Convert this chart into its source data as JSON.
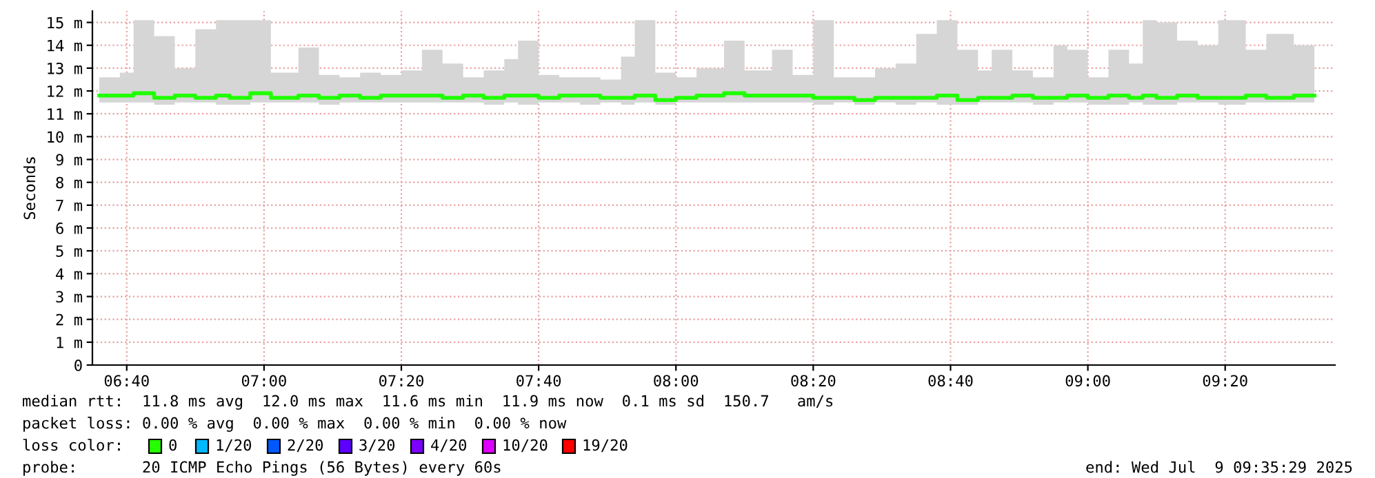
{
  "chart_data": {
    "type": "step",
    "ylabel": "Seconds",
    "x": [
      "2025-07-09T06:36",
      "2025-07-09T06:39",
      "2025-07-09T06:41",
      "2025-07-09T06:44",
      "2025-07-09T06:47",
      "2025-07-09T06:50",
      "2025-07-09T06:53",
      "2025-07-09T06:55",
      "2025-07-09T06:58",
      "2025-07-09T07:01",
      "2025-07-09T07:05",
      "2025-07-09T07:08",
      "2025-07-09T07:11",
      "2025-07-09T07:14",
      "2025-07-09T07:17",
      "2025-07-09T07:20",
      "2025-07-09T07:23",
      "2025-07-09T07:26",
      "2025-07-09T07:29",
      "2025-07-09T07:32",
      "2025-07-09T07:35",
      "2025-07-09T07:37",
      "2025-07-09T07:40",
      "2025-07-09T07:43",
      "2025-07-09T07:46",
      "2025-07-09T07:49",
      "2025-07-09T07:52",
      "2025-07-09T07:54",
      "2025-07-09T07:57",
      "2025-07-09T08:00",
      "2025-07-09T08:03",
      "2025-07-09T08:07",
      "2025-07-09T08:10",
      "2025-07-09T08:14",
      "2025-07-09T08:17",
      "2025-07-09T08:20",
      "2025-07-09T08:23",
      "2025-07-09T08:26",
      "2025-07-09T08:29",
      "2025-07-09T08:32",
      "2025-07-09T08:35",
      "2025-07-09T08:38",
      "2025-07-09T08:41",
      "2025-07-09T08:44",
      "2025-07-09T08:46",
      "2025-07-09T08:49",
      "2025-07-09T08:52",
      "2025-07-09T08:55",
      "2025-07-09T08:57",
      "2025-07-09T09:00",
      "2025-07-09T09:03",
      "2025-07-09T09:06",
      "2025-07-09T09:08",
      "2025-07-09T09:10",
      "2025-07-09T09:13",
      "2025-07-09T09:16",
      "2025-07-09T09:19",
      "2025-07-09T09:23",
      "2025-07-09T09:26",
      "2025-07-09T09:30",
      "2025-07-09T09:33"
    ],
    "series": [
      {
        "color": "#20ff00",
        "values": [
          11.8,
          11.8,
          11.9,
          11.7,
          11.8,
          11.7,
          11.8,
          11.7,
          11.9,
          11.7,
          11.8,
          11.7,
          11.8,
          11.7,
          11.8,
          11.8,
          11.8,
          11.7,
          11.8,
          11.7,
          11.8,
          11.8,
          11.7,
          11.8,
          11.8,
          11.7,
          11.7,
          11.8,
          11.6,
          11.7,
          11.8,
          11.9,
          11.8,
          11.8,
          11.8,
          11.7,
          11.7,
          11.6,
          11.7,
          11.7,
          11.7,
          11.8,
          11.6,
          11.7,
          11.7,
          11.8,
          11.7,
          11.7,
          11.8,
          11.7,
          11.8,
          11.7,
          11.8,
          11.7,
          11.8,
          11.7,
          11.7,
          11.8,
          11.7,
          11.8,
          11.8
        ],
        "lower": [
          11.5,
          11.5,
          11.5,
          11.4,
          11.5,
          11.5,
          11.4,
          11.4,
          11.5,
          11.5,
          11.5,
          11.4,
          11.5,
          11.5,
          11.5,
          11.5,
          11.5,
          11.5,
          11.5,
          11.4,
          11.5,
          11.4,
          11.5,
          11.5,
          11.4,
          11.5,
          11.4,
          11.5,
          11.4,
          11.5,
          11.5,
          11.5,
          11.5,
          11.5,
          11.5,
          11.4,
          11.5,
          11.4,
          11.5,
          11.4,
          11.5,
          11.4,
          11.4,
          11.5,
          11.5,
          11.5,
          11.4,
          11.5,
          11.5,
          11.4,
          11.4,
          11.5,
          11.4,
          11.4,
          11.5,
          11.5,
          11.4,
          11.5,
          11.5,
          11.5,
          11.5
        ],
        "upper": [
          12.6,
          12.8,
          15.1,
          14.4,
          13,
          14.7,
          15.1,
          15.1,
          15.1,
          12.8,
          13.9,
          12.7,
          12.6,
          12.8,
          12.7,
          12.9,
          13.8,
          13.2,
          12.6,
          12.9,
          13.4,
          14.2,
          12.7,
          12.6,
          12.6,
          12.5,
          13.5,
          15.1,
          12.8,
          12.6,
          13,
          14.2,
          12.9,
          13.8,
          12.7,
          15.1,
          12.6,
          12.6,
          13,
          13.2,
          14.5,
          15.1,
          13.8,
          12.9,
          13.8,
          12.9,
          12.6,
          14,
          13.8,
          12.6,
          13.8,
          13.2,
          15.1,
          15,
          14.2,
          14,
          15.1,
          13.8,
          14.5,
          14,
          12.7
        ]
      }
    ],
    "xlim": [
      "2025-07-09T06:35",
      "2025-07-09T09:36"
    ],
    "xticks": [
      {
        "value": "2025-07-09T06:40",
        "label": "06:40"
      },
      {
        "value": "2025-07-09T07:00",
        "label": "07:00"
      },
      {
        "value": "2025-07-09T07:20",
        "label": "07:20"
      },
      {
        "value": "2025-07-09T07:40",
        "label": "07:40"
      },
      {
        "value": "2025-07-09T08:00",
        "label": "08:00"
      },
      {
        "value": "2025-07-09T08:20",
        "label": "08:20"
      },
      {
        "value": "2025-07-09T08:40",
        "label": "08:40"
      },
      {
        "value": "2025-07-09T09:00",
        "label": "09:00"
      },
      {
        "value": "2025-07-09T09:20",
        "label": "09:20"
      }
    ],
    "ylim": [
      0,
      15.5
    ],
    "yticks": [
      0,
      {
        "value": 1,
        "label": "1 m"
      },
      {
        "value": 2,
        "label": "2 m"
      },
      {
        "value": 3,
        "label": "3 m"
      },
      {
        "value": 4,
        "label": "4 m"
      },
      {
        "value": 5,
        "label": "5 m"
      },
      {
        "value": 6,
        "label": "6 m"
      },
      {
        "value": 7,
        "label": "7 m"
      },
      {
        "value": 8,
        "label": "8 m"
      },
      {
        "value": 9,
        "label": "9 m"
      },
      {
        "value": 10,
        "label": "10 m"
      },
      {
        "value": 11,
        "label": "11 m"
      },
      {
        "value": 12,
        "label": "12 m"
      },
      {
        "value": 13,
        "label": "13 m"
      },
      {
        "value": 14,
        "label": "14 m"
      },
      {
        "value": 15,
        "label": "15 m"
      }
    ],
    "grid": true,
    "annotations": [
      "median rtt:  11.8 ms avg  12.0 ms max  11.6 ms min  11.9 ms now  0.1 ms sd  150.7   am/s",
      "packet loss: 0.00 % avg  0.00 % max  0.00 % min  0.00 % now",
      "loss color:",
      "0",
      "1/20",
      "2/20",
      "3/20",
      "4/20",
      "10/20",
      "19/20",
      "probe:       20 ICMP Echo Pings (56 Bytes) every 60s",
      "end: Wed Jul  9 09:35:29 2025"
    ]
  }
}
